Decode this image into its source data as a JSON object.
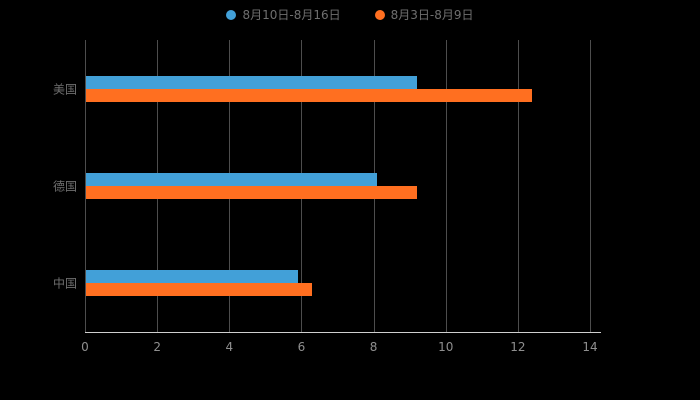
{
  "chart_data": {
    "type": "bar",
    "orientation": "horizontal",
    "title": "",
    "categories": [
      "美国",
      "德国",
      "中国"
    ],
    "series": [
      {
        "name": "8月10日-8月16日",
        "color": "#42A0D8",
        "values": [
          9.2,
          8.1,
          5.9
        ]
      },
      {
        "name": "8月3日-8月9日",
        "color": "#FF6F20",
        "values": [
          12.4,
          9.2,
          6.3
        ]
      }
    ],
    "xlim": [
      0,
      14
    ],
    "xticks": [
      0,
      2,
      4,
      6,
      8,
      10,
      12,
      14
    ],
    "grid": true,
    "legend_position": "top",
    "xlabel": "",
    "ylabel": ""
  },
  "colors": {
    "background": "#000000",
    "gridline": "#4d4d4d",
    "axis": "#cfcfcf",
    "tick_label": "#8f8f8f",
    "category_label": "#6f6f6f",
    "legend_label": "#6f6f6f"
  }
}
